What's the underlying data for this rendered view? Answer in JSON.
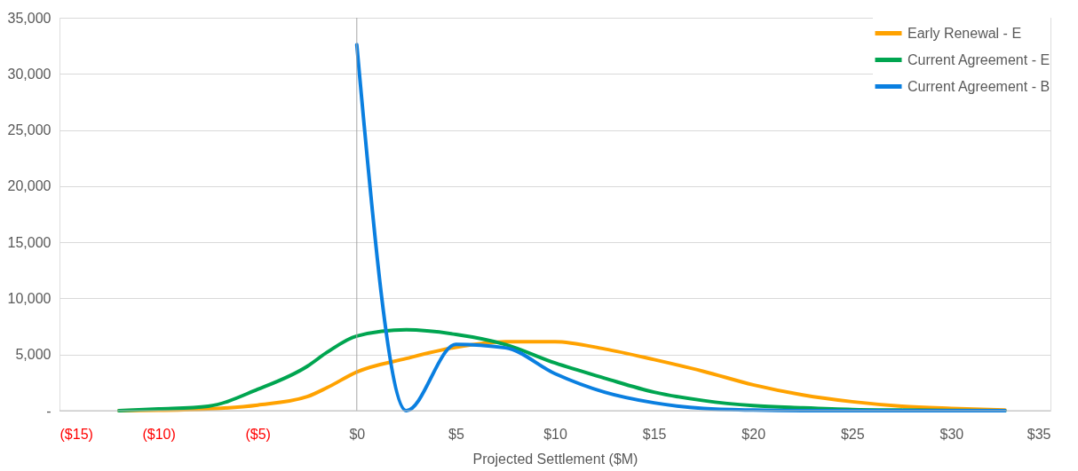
{
  "chart_data": {
    "type": "line",
    "xlabel": "Projected Settlement ($M)",
    "xlim": [
      -15,
      35
    ],
    "xticks": [
      {
        "value": -15,
        "label": "($15)"
      },
      {
        "value": -10,
        "label": "($10)"
      },
      {
        "value": -5,
        "label": "($5)"
      },
      {
        "value": 0,
        "label": "$0"
      },
      {
        "value": 5,
        "label": "$5"
      },
      {
        "value": 10,
        "label": "$10"
      },
      {
        "value": 15,
        "label": "$15"
      },
      {
        "value": 20,
        "label": "$20"
      },
      {
        "value": 25,
        "label": "$25"
      },
      {
        "value": 30,
        "label": "$30"
      },
      {
        "value": 35,
        "label": "$35"
      }
    ],
    "ylim": [
      0,
      35000
    ],
    "yticks": [
      {
        "value": 0,
        "label": "-"
      },
      {
        "value": 5000,
        "label": "5,000"
      },
      {
        "value": 10000,
        "label": "10,000"
      },
      {
        "value": 15000,
        "label": "15,000"
      },
      {
        "value": 20000,
        "label": "20,000"
      },
      {
        "value": 25000,
        "label": "25,000"
      },
      {
        "value": 30000,
        "label": "30,000"
      },
      {
        "value": 35000,
        "label": "35,000"
      }
    ],
    "grid": "y",
    "legend": "top right",
    "marker": "none",
    "line_style": "solid",
    "ref_lines": [
      {
        "axis": "x",
        "value": 0,
        "color": "#a6a6a6"
      }
    ],
    "series": [
      {
        "name": "Early Renewal - E",
        "color": "#ffa200",
        "x": [
          -12,
          -10,
          -7.5,
          -5,
          -2.5,
          -1.5,
          0,
          2.5,
          5,
          7.5,
          10,
          12.5,
          15,
          17.5,
          20,
          22.5,
          25,
          27.5,
          30,
          32.7
        ],
        "values": [
          0,
          30,
          150,
          500,
          1250,
          2050,
          3450,
          4650,
          5650,
          6150,
          6150,
          5500,
          4550,
          3500,
          2300,
          1400,
          800,
          400,
          200,
          50
        ]
      },
      {
        "name": "Current Agreement - E",
        "color": "#00a550",
        "x": [
          -12,
          -10,
          -7.5,
          -5,
          -2.5,
          -1.5,
          0,
          2.5,
          5,
          7.5,
          10,
          12.5,
          15,
          17.5,
          20,
          22.5,
          25,
          27.5,
          30,
          32.7
        ],
        "values": [
          0,
          150,
          400,
          1900,
          3950,
          5200,
          6650,
          7200,
          6800,
          5900,
          4250,
          2900,
          1650,
          900,
          450,
          250,
          100,
          50,
          20,
          0
        ]
      },
      {
        "name": "Current Agreement - B",
        "color": "#0a7fe0",
        "x": [
          0,
          2.5,
          5,
          7.5,
          10,
          12.5,
          15,
          17.5,
          20,
          22.5,
          25,
          27.5,
          30,
          32.7
        ],
        "values": [
          32600,
          0,
          5900,
          5600,
          3300,
          1650,
          700,
          200,
          50,
          0,
          0,
          0,
          0,
          0
        ]
      }
    ]
  }
}
